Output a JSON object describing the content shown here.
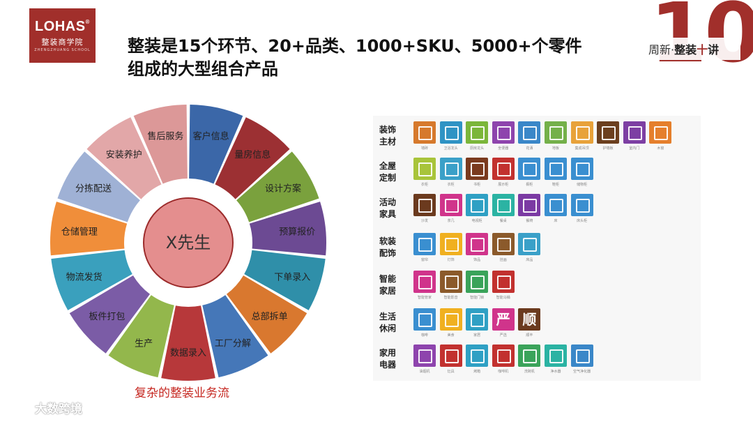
{
  "logo": {
    "brand": "LOHAS",
    "reg": "®",
    "subtitle": "整装商学院",
    "tiny": "ZHENGZHUANG SCHOOL"
  },
  "title": {
    "line1": "整装是15个环节、20+品类、1000+SKU、5000+个零件",
    "line2": "组成的大型组合产品"
  },
  "badge": {
    "number": "10",
    "caption_prefix": "周新·",
    "caption_main": "整装",
    "caption_ten": "十",
    "caption_end": "讲"
  },
  "wheel": {
    "center_label": "X先生",
    "caption": "复杂的整装业务流",
    "segments": [
      {
        "label": "客户信息",
        "color": "#3b67a8"
      },
      {
        "label": "量房信息",
        "color": "#9c3033"
      },
      {
        "label": "设计方案",
        "color": "#7aa13d"
      },
      {
        "label": "预算报价",
        "color": "#6c4a93"
      },
      {
        "label": "下单录入",
        "color": "#2f8fa9"
      },
      {
        "label": "总部拆单",
        "color": "#d9782f"
      },
      {
        "label": "工厂分解",
        "color": "#4577b8"
      },
      {
        "label": "数据录入",
        "color": "#b7383a"
      },
      {
        "label": "生产",
        "color": "#93b74c"
      },
      {
        "label": "板件打包",
        "color": "#7b5ca6"
      },
      {
        "label": "物流发货",
        "color": "#3aa0bd"
      },
      {
        "label": "仓储管理",
        "color": "#f08e3a"
      },
      {
        "label": "分拣配送",
        "color": "#9fb1d5"
      },
      {
        "label": "安装养护",
        "color": "#e2a7a8"
      },
      {
        "label": "售后服务",
        "color": "#dc9898"
      }
    ]
  },
  "products": {
    "rows": [
      {
        "label": "装饰主材",
        "items": [
          {
            "name": "墙砖",
            "color": "#d6792c"
          },
          {
            "name": "卫浴龙头",
            "color": "#2f93c4"
          },
          {
            "name": "厨房龙头",
            "color": "#7bb63a"
          },
          {
            "name": "坐便器",
            "color": "#8e44ad"
          },
          {
            "name": "花洒",
            "color": "#3a87c8"
          },
          {
            "name": "地板",
            "color": "#74b04a"
          },
          {
            "name": "集成吊顶",
            "color": "#e8a23a"
          },
          {
            "name": "护墙板",
            "color": "#6b3f1e"
          },
          {
            "name": "室内门",
            "color": "#7d3fa3"
          },
          {
            "name": "木窗",
            "color": "#e57f2c"
          }
        ]
      },
      {
        "label": "全屋定制",
        "items": [
          {
            "name": "衣柜",
            "color": "#a8c43a"
          },
          {
            "name": "衣柜",
            "color": "#3aa0c8"
          },
          {
            "name": "书柜",
            "color": "#7a3a1e"
          },
          {
            "name": "展示柜",
            "color": "#c2312f"
          },
          {
            "name": "橱柜",
            "color": "#3a8fd0"
          },
          {
            "name": "鞋柜",
            "color": "#3a8fd0"
          },
          {
            "name": "储物柜",
            "color": "#3a8fd0"
          }
        ]
      },
      {
        "label": "活动家具",
        "items": [
          {
            "name": "沙发",
            "color": "#6b3a1e"
          },
          {
            "name": "茶几",
            "color": "#d0348b"
          },
          {
            "name": "电视柜",
            "color": "#2fa0c4"
          },
          {
            "name": "餐桌",
            "color": "#2bb3a3"
          },
          {
            "name": "餐椅",
            "color": "#7b3aa3"
          },
          {
            "name": "床",
            "color": "#3a8fd0"
          },
          {
            "name": "床头柜",
            "color": "#3a8fd0"
          }
        ]
      },
      {
        "label": "软装配饰",
        "items": [
          {
            "name": "窗帘",
            "color": "#3a8fd0"
          },
          {
            "name": "灯饰",
            "color": "#f0b020"
          },
          {
            "name": "饰品",
            "color": "#d0348b"
          },
          {
            "name": "挂画",
            "color": "#8b5a2b"
          },
          {
            "name": "床品",
            "color": "#3aa0c8"
          }
        ]
      },
      {
        "label": "智能家居",
        "items": [
          {
            "name": "智能管家",
            "color": "#d0348b"
          },
          {
            "name": "智能影音",
            "color": "#8b5a2b"
          },
          {
            "name": "智能门锁",
            "color": "#3aa35a"
          },
          {
            "name": "智能马桶",
            "color": "#c2312f"
          }
        ]
      },
      {
        "label": "生活休闲",
        "items": [
          {
            "name": "咖啡",
            "color": "#3a8fd0"
          },
          {
            "name": "美食",
            "color": "#f0b020"
          },
          {
            "name": "家居",
            "color": "#2fa0c4"
          },
          {
            "name": "严选",
            "color": "#d0348b",
            "glyph": "严"
          },
          {
            "name": "顺丰",
            "color": "#6b3a1e",
            "glyph": "顺"
          }
        ]
      },
      {
        "label": "家用电器",
        "items": [
          {
            "name": "油烟机",
            "color": "#8e44ad"
          },
          {
            "name": "灶具",
            "color": "#c2312f"
          },
          {
            "name": "烤箱",
            "color": "#2fa0c4"
          },
          {
            "name": "咖啡机",
            "color": "#c2312f"
          },
          {
            "name": "洗碗机",
            "color": "#3aa35a"
          },
          {
            "name": "净水器",
            "color": "#2bb3a3"
          },
          {
            "name": "空气净化器",
            "color": "#3a87c8"
          }
        ]
      }
    ]
  },
  "watermark": {
    "text": "大数跨境"
  }
}
